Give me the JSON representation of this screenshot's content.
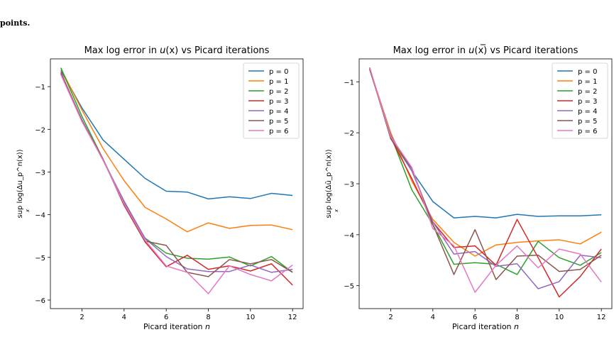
{
  "caption_fragment": "points.",
  "chart_data": [
    {
      "type": "line",
      "title_prefix": "Max log error in ",
      "title_var": "u",
      "title_var_bar": false,
      "title_suffix": "(x) vs Picard iterations",
      "xlabel_prefix": "Picard iteration ",
      "xlabel_var": "n",
      "ylabel": "sup log(Δu_p^n(x))",
      "ylabel_sub": "x",
      "x": [
        1,
        2,
        3,
        4,
        5,
        6,
        7,
        8,
        9,
        10,
        11,
        12
      ],
      "xticks": [
        2,
        4,
        6,
        8,
        10,
        12
      ],
      "yticks": [
        -1,
        -2,
        -3,
        -4,
        -5,
        -6
      ],
      "xlim": [
        0.5,
        12.5
      ],
      "ylim": [
        -6.2,
        -0.35
      ],
      "legend_position": "top-right",
      "series": [
        {
          "name": "p = 0",
          "color": "#1f77b4",
          "values": [
            -0.62,
            -1.5,
            -2.25,
            -2.7,
            -3.15,
            -3.45,
            -3.47,
            -3.63,
            -3.58,
            -3.62,
            -3.5,
            -3.55
          ]
        },
        {
          "name": "p = 1",
          "color": "#ff7f0e",
          "values": [
            -0.58,
            -1.55,
            -2.45,
            -3.2,
            -3.83,
            -4.1,
            -4.4,
            -4.19,
            -4.32,
            -4.25,
            -4.24,
            -4.35
          ]
        },
        {
          "name": "p = 2",
          "color": "#2ca02c",
          "values": [
            -0.56,
            -1.7,
            -2.7,
            -3.72,
            -4.55,
            -4.9,
            -5.02,
            -5.04,
            -4.99,
            -5.2,
            -4.98,
            -5.35
          ]
        },
        {
          "name": "p = 3",
          "color": "#d62728",
          "values": [
            -0.66,
            -1.8,
            -2.7,
            -3.78,
            -4.64,
            -5.22,
            -4.95,
            -5.28,
            -5.2,
            -5.32,
            -5.15,
            -5.65
          ]
        },
        {
          "name": "p = 4",
          "color": "#9467bd",
          "values": [
            -0.68,
            -1.78,
            -2.72,
            -3.68,
            -4.56,
            -4.98,
            -5.27,
            -5.33,
            -5.33,
            -5.18,
            -5.35,
            -5.28
          ]
        },
        {
          "name": "p = 5",
          "color": "#8c564b",
          "values": [
            -0.7,
            -1.8,
            -2.72,
            -3.75,
            -4.62,
            -4.72,
            -5.35,
            -5.45,
            -5.05,
            -5.15,
            -5.05,
            -5.35
          ]
        },
        {
          "name": "p = 6",
          "color": "#e377c2",
          "values": [
            -0.72,
            -1.82,
            -2.72,
            -3.74,
            -4.6,
            -5.2,
            -5.35,
            -5.85,
            -5.2,
            -5.4,
            -5.55,
            -5.18
          ]
        }
      ]
    },
    {
      "type": "line",
      "title_prefix": "Max log error in ",
      "title_var": "u",
      "title_var_bar": true,
      "title_suffix": "(x) vs Picard iterations",
      "xlabel_prefix": "Picard iteration ",
      "xlabel_var": "n",
      "ylabel": "sup log(Δū_p^n(x))",
      "ylabel_sub": "x",
      "x": [
        1,
        2,
        3,
        4,
        5,
        6,
        7,
        8,
        9,
        10,
        11,
        12
      ],
      "xticks": [
        2,
        4,
        6,
        8,
        10,
        12
      ],
      "yticks": [
        -1,
        -2,
        -3,
        -4,
        -5
      ],
      "xlim": [
        0.5,
        12.5
      ],
      "ylim": [
        -5.45,
        -0.55
      ],
      "legend_position": "top-right",
      "series": [
        {
          "name": "p = 0",
          "color": "#1f77b4",
          "values": [
            -0.72,
            -2.1,
            -2.75,
            -3.35,
            -3.67,
            -3.64,
            -3.67,
            -3.6,
            -3.64,
            -3.63,
            -3.63,
            -3.61
          ]
        },
        {
          "name": "p = 1",
          "color": "#ff7f0e",
          "values": [
            -0.75,
            -2.0,
            -2.95,
            -3.7,
            -4.15,
            -4.42,
            -4.2,
            -4.15,
            -4.12,
            -4.1,
            -4.18,
            -3.95
          ]
        },
        {
          "name": "p = 2",
          "color": "#2ca02c",
          "values": [
            -0.76,
            -2.05,
            -3.12,
            -3.8,
            -4.58,
            -4.55,
            -4.58,
            -4.78,
            -4.13,
            -4.45,
            -4.6,
            -4.35
          ]
        },
        {
          "name": "p = 3",
          "color": "#d62728",
          "values": [
            -0.74,
            -2.1,
            -2.9,
            -3.75,
            -4.25,
            -4.22,
            -4.6,
            -3.7,
            -4.45,
            -5.22,
            -4.82,
            -4.28
          ]
        },
        {
          "name": "p = 4",
          "color": "#9467bd",
          "values": [
            -0.73,
            -2.05,
            -2.75,
            -3.75,
            -4.38,
            -4.33,
            -4.62,
            -4.57,
            -5.06,
            -4.92,
            -4.4,
            -4.45
          ]
        },
        {
          "name": "p = 5",
          "color": "#8c564b",
          "values": [
            -0.72,
            -2.12,
            -2.7,
            -3.8,
            -4.78,
            -3.9,
            -4.88,
            -4.42,
            -4.4,
            -4.72,
            -4.68,
            -4.4
          ]
        },
        {
          "name": "p = 6",
          "color": "#e377c2",
          "values": [
            -0.72,
            -2.08,
            -2.68,
            -3.88,
            -4.22,
            -5.13,
            -4.6,
            -4.22,
            -4.65,
            -4.28,
            -4.38,
            -4.93
          ]
        }
      ]
    }
  ]
}
